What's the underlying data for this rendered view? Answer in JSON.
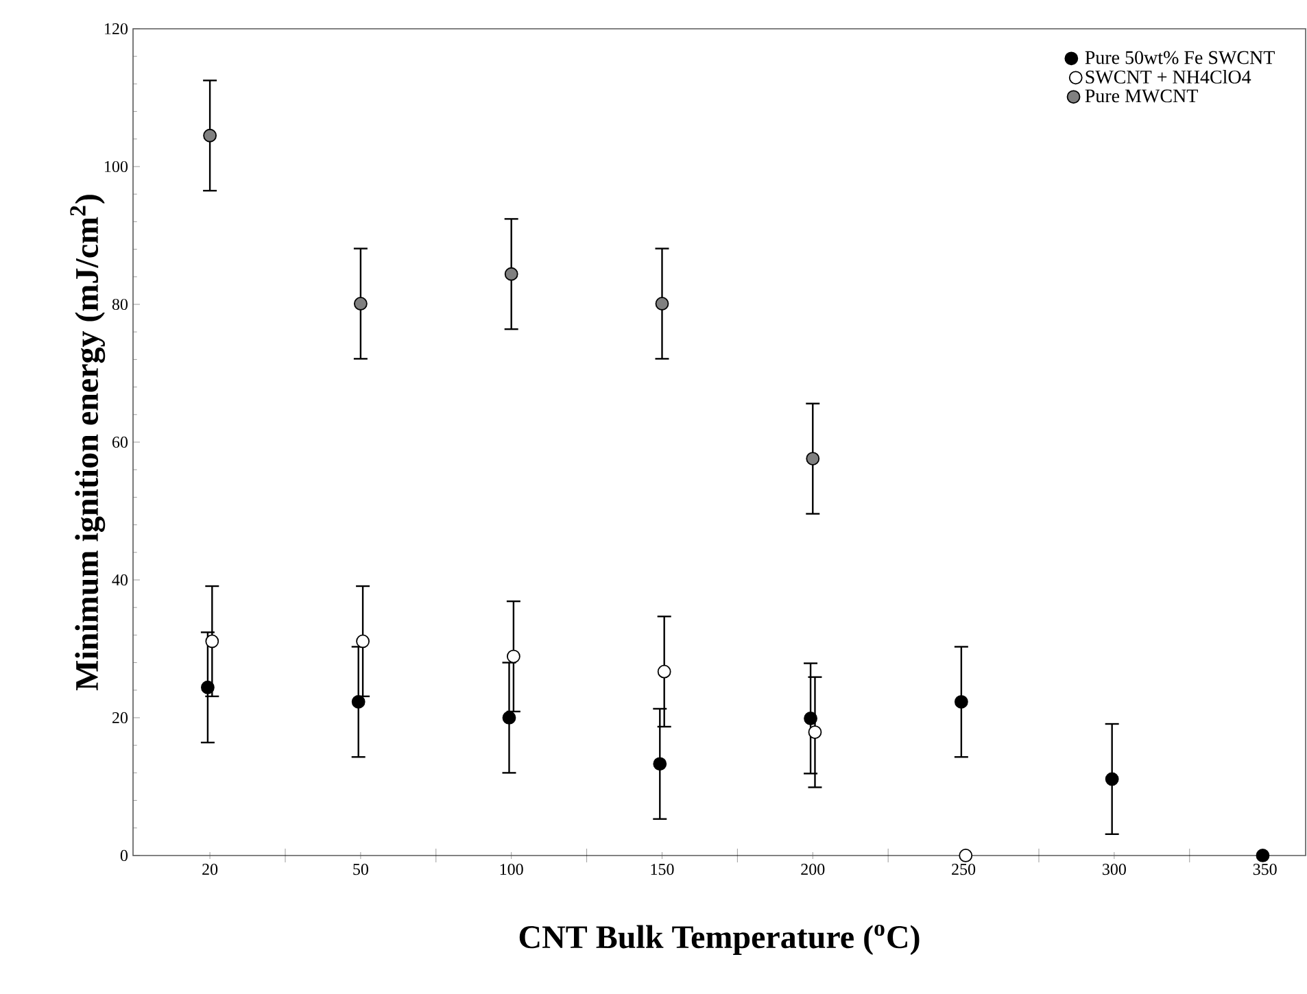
{
  "chart_data": {
    "type": "scatter",
    "xlabel": "CNT Bulk Temperature ($^{o}$C)",
    "ylabel": "Minimum ignition energy (mJ/cm$^{2}$)",
    "categories": [
      "20",
      "50",
      "100",
      "150",
      "200",
      "250",
      "300",
      "350"
    ],
    "ylim": [
      0,
      120
    ],
    "yticks": [
      0,
      20,
      40,
      60,
      80,
      100,
      120
    ],
    "grid": false,
    "legend": "top right",
    "marker": "circle",
    "series": [
      {
        "name": "Pure 50wt% Fe SWCNT",
        "color": "#000000",
        "values": [
          24.4,
          22.3,
          20.0,
          13.3,
          19.9,
          22.3,
          11.1,
          0
        ],
        "errors": [
          8,
          8,
          8,
          8,
          8,
          8,
          8,
          null
        ]
      },
      {
        "name": "SWCNT + NH4ClO4",
        "color": "#ffffff",
        "values": [
          31.1,
          31.1,
          28.9,
          26.7,
          17.9,
          0,
          null,
          null
        ],
        "errors": [
          8,
          8,
          8,
          8,
          8,
          null,
          null,
          null
        ]
      },
      {
        "name": "Pure MWCNT",
        "color": "#808080",
        "values": [
          104.5,
          80.1,
          84.4,
          80.1,
          57.6,
          null,
          null,
          null
        ],
        "errors": [
          8,
          8,
          8,
          8,
          8,
          null,
          null,
          null
        ]
      }
    ]
  }
}
